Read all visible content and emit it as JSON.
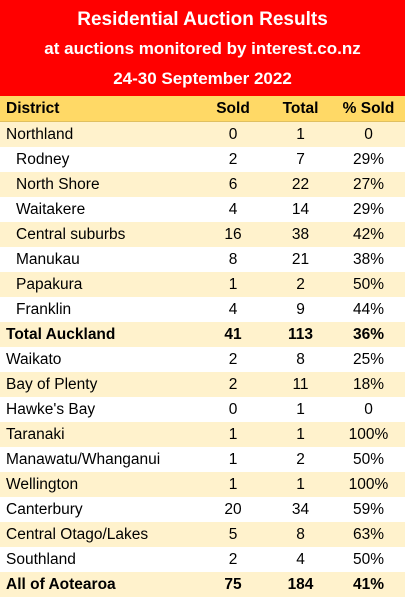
{
  "title": {
    "line1": "Residential Auction Results",
    "line2": "at auctions monitored by interest.co.nz",
    "line3": "24-30 September 2022"
  },
  "columns": [
    "District",
    "Sold",
    "Total",
    "% Sold"
  ],
  "rows": [
    {
      "district": "Northland",
      "sold": "0",
      "total": "1",
      "pct": "0"
    },
    {
      "district": "Rodney",
      "sold": "2",
      "total": "7",
      "pct": "29%"
    },
    {
      "district": "North Shore",
      "sold": "6",
      "total": "22",
      "pct": "27%"
    },
    {
      "district": "Waitakere",
      "sold": "4",
      "total": "14",
      "pct": "29%"
    },
    {
      "district": "Central suburbs",
      "sold": "16",
      "total": "38",
      "pct": "42%"
    },
    {
      "district": "Manukau",
      "sold": "8",
      "total": "21",
      "pct": "38%"
    },
    {
      "district": "Papakura",
      "sold": "1",
      "total": "2",
      "pct": "50%"
    },
    {
      "district": "Franklin",
      "sold": "4",
      "total": "9",
      "pct": "44%"
    },
    {
      "district": "Total Auckland",
      "sold": "41",
      "total": "113",
      "pct": "36%"
    },
    {
      "district": "Waikato",
      "sold": "2",
      "total": "8",
      "pct": "25%"
    },
    {
      "district": "Bay of Plenty",
      "sold": "2",
      "total": "11",
      "pct": "18%"
    },
    {
      "district": "Hawke's Bay",
      "sold": "0",
      "total": "1",
      "pct": "0"
    },
    {
      "district": "Taranaki",
      "sold": "1",
      "total": "1",
      "pct": "100%"
    },
    {
      "district": "Manawatu/Whanganui",
      "sold": "1",
      "total": "2",
      "pct": "50%"
    },
    {
      "district": "Wellington",
      "sold": "1",
      "total": "1",
      "pct": "100%"
    },
    {
      "district": "Canterbury",
      "sold": "20",
      "total": "34",
      "pct": "59%"
    },
    {
      "district": "Central Otago/Lakes",
      "sold": "5",
      "total": "8",
      "pct": "63%"
    },
    {
      "district": "Southland",
      "sold": "2",
      "total": "4",
      "pct": "50%"
    },
    {
      "district": "All of Aotearoa",
      "sold": "75",
      "total": "184",
      "pct": "41%"
    }
  ]
}
